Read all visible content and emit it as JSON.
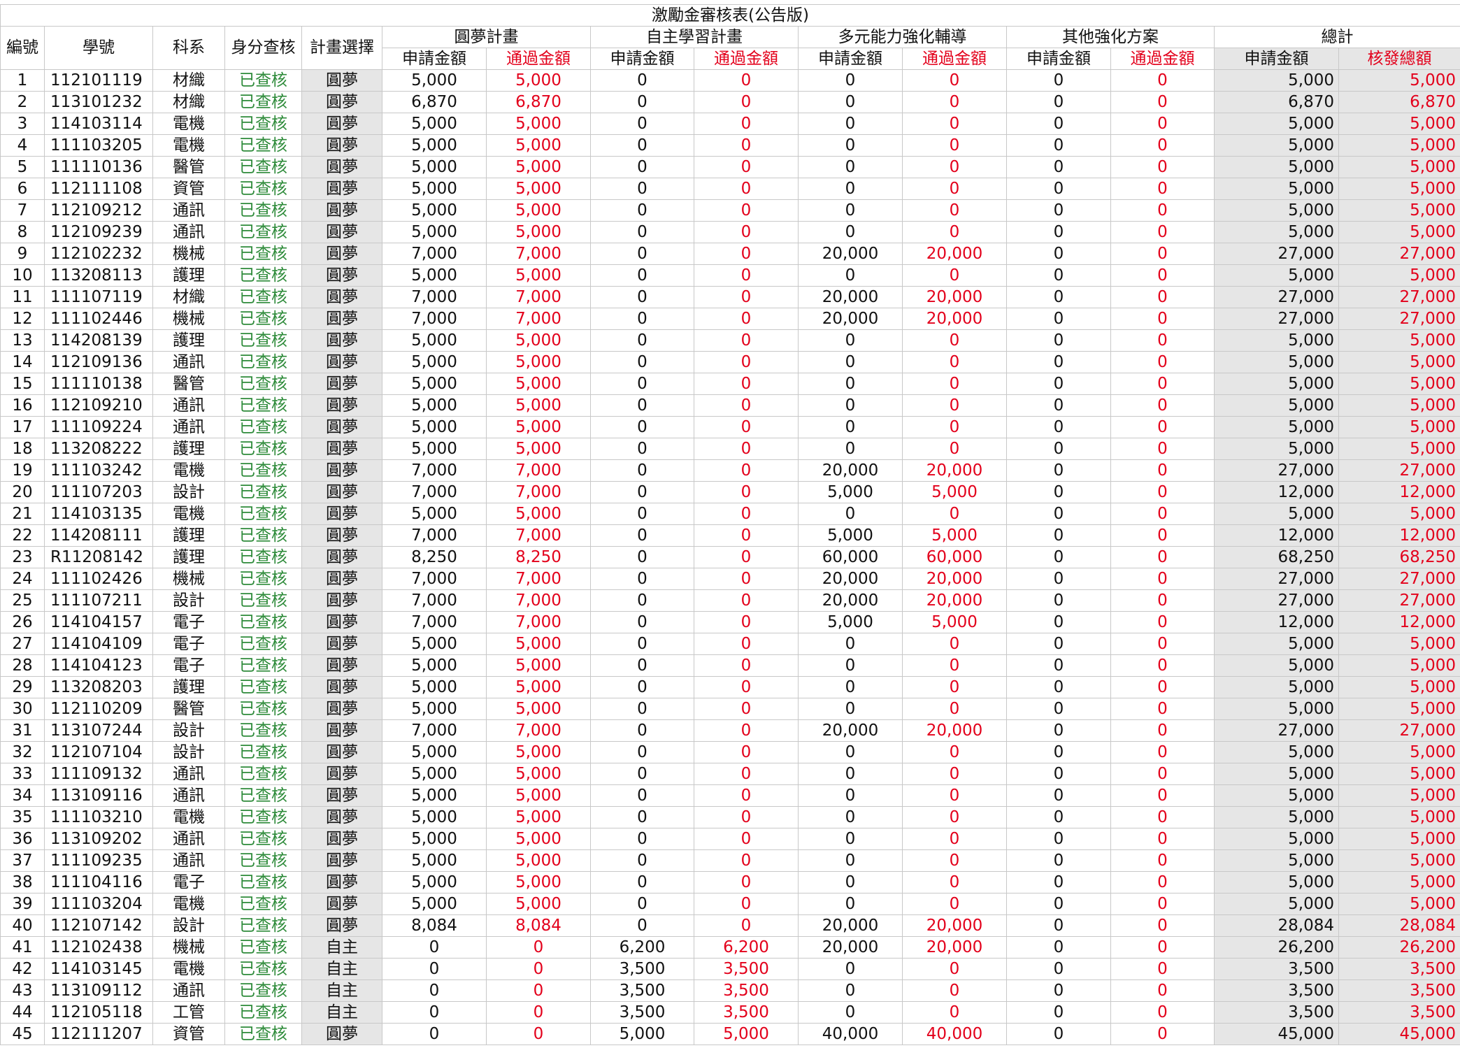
{
  "title": "激勵金審核表(公告版)",
  "headers": {
    "no": "編號",
    "student_id": "學號",
    "dept": "科系",
    "identity_check": "身分查核",
    "plan_choice": "計畫選擇",
    "groups": [
      "圓夢計畫",
      "自主學習計畫",
      "多元能力強化輔導",
      "其他強化方案",
      "總計"
    ],
    "apply": "申請金額",
    "approved": "通過金額",
    "total_issued": "核發總額"
  },
  "colors": {
    "approved_text": "#e3001b",
    "checked_text": "#2e8b3a",
    "gray_fill": "#e6e6e6"
  },
  "rows": [
    {
      "no": "1",
      "id": "112101119",
      "dept": "材織",
      "check": "已查核",
      "plan": "圓夢",
      "a1": "5,000",
      "p1": "5,000",
      "a2": "0",
      "p2": "0",
      "a3": "0",
      "p3": "0",
      "a4": "0",
      "p4": "0",
      "ta": "5,000",
      "tp": "5,000"
    },
    {
      "no": "2",
      "id": "113101232",
      "dept": "材織",
      "check": "已查核",
      "plan": "圓夢",
      "a1": "6,870",
      "p1": "6,870",
      "a2": "0",
      "p2": "0",
      "a3": "0",
      "p3": "0",
      "a4": "0",
      "p4": "0",
      "ta": "6,870",
      "tp": "6,870"
    },
    {
      "no": "3",
      "id": "114103114",
      "dept": "電機",
      "check": "已查核",
      "plan": "圓夢",
      "a1": "5,000",
      "p1": "5,000",
      "a2": "0",
      "p2": "0",
      "a3": "0",
      "p3": "0",
      "a4": "0",
      "p4": "0",
      "ta": "5,000",
      "tp": "5,000"
    },
    {
      "no": "4",
      "id": "111103205",
      "dept": "電機",
      "check": "已查核",
      "plan": "圓夢",
      "a1": "5,000",
      "p1": "5,000",
      "a2": "0",
      "p2": "0",
      "a3": "0",
      "p3": "0",
      "a4": "0",
      "p4": "0",
      "ta": "5,000",
      "tp": "5,000"
    },
    {
      "no": "5",
      "id": "111110136",
      "dept": "醫管",
      "check": "已查核",
      "plan": "圓夢",
      "a1": "5,000",
      "p1": "5,000",
      "a2": "0",
      "p2": "0",
      "a3": "0",
      "p3": "0",
      "a4": "0",
      "p4": "0",
      "ta": "5,000",
      "tp": "5,000"
    },
    {
      "no": "6",
      "id": "112111108",
      "dept": "資管",
      "check": "已查核",
      "plan": "圓夢",
      "a1": "5,000",
      "p1": "5,000",
      "a2": "0",
      "p2": "0",
      "a3": "0",
      "p3": "0",
      "a4": "0",
      "p4": "0",
      "ta": "5,000",
      "tp": "5,000"
    },
    {
      "no": "7",
      "id": "112109212",
      "dept": "通訊",
      "check": "已查核",
      "plan": "圓夢",
      "a1": "5,000",
      "p1": "5,000",
      "a2": "0",
      "p2": "0",
      "a3": "0",
      "p3": "0",
      "a4": "0",
      "p4": "0",
      "ta": "5,000",
      "tp": "5,000"
    },
    {
      "no": "8",
      "id": "112109239",
      "dept": "通訊",
      "check": "已查核",
      "plan": "圓夢",
      "a1": "5,000",
      "p1": "5,000",
      "a2": "0",
      "p2": "0",
      "a3": "0",
      "p3": "0",
      "a4": "0",
      "p4": "0",
      "ta": "5,000",
      "tp": "5,000"
    },
    {
      "no": "9",
      "id": "112102232",
      "dept": "機械",
      "check": "已查核",
      "plan": "圓夢",
      "a1": "7,000",
      "p1": "7,000",
      "a2": "0",
      "p2": "0",
      "a3": "20,000",
      "p3": "20,000",
      "a4": "0",
      "p4": "0",
      "ta": "27,000",
      "tp": "27,000"
    },
    {
      "no": "10",
      "id": "113208113",
      "dept": "護理",
      "check": "已查核",
      "plan": "圓夢",
      "a1": "5,000",
      "p1": "5,000",
      "a2": "0",
      "p2": "0",
      "a3": "0",
      "p3": "0",
      "a4": "0",
      "p4": "0",
      "ta": "5,000",
      "tp": "5,000"
    },
    {
      "no": "11",
      "id": "111107119",
      "dept": "材織",
      "check": "已查核",
      "plan": "圓夢",
      "a1": "7,000",
      "p1": "7,000",
      "a2": "0",
      "p2": "0",
      "a3": "20,000",
      "p3": "20,000",
      "a4": "0",
      "p4": "0",
      "ta": "27,000",
      "tp": "27,000"
    },
    {
      "no": "12",
      "id": "111102446",
      "dept": "機械",
      "check": "已查核",
      "plan": "圓夢",
      "a1": "7,000",
      "p1": "7,000",
      "a2": "0",
      "p2": "0",
      "a3": "20,000",
      "p3": "20,000",
      "a4": "0",
      "p4": "0",
      "ta": "27,000",
      "tp": "27,000"
    },
    {
      "no": "13",
      "id": "114208139",
      "dept": "護理",
      "check": "已查核",
      "plan": "圓夢",
      "a1": "5,000",
      "p1": "5,000",
      "a2": "0",
      "p2": "0",
      "a3": "0",
      "p3": "0",
      "a4": "0",
      "p4": "0",
      "ta": "5,000",
      "tp": "5,000"
    },
    {
      "no": "14",
      "id": "112109136",
      "dept": "通訊",
      "check": "已查核",
      "plan": "圓夢",
      "a1": "5,000",
      "p1": "5,000",
      "a2": "0",
      "p2": "0",
      "a3": "0",
      "p3": "0",
      "a4": "0",
      "p4": "0",
      "ta": "5,000",
      "tp": "5,000"
    },
    {
      "no": "15",
      "id": "111110138",
      "dept": "醫管",
      "check": "已查核",
      "plan": "圓夢",
      "a1": "5,000",
      "p1": "5,000",
      "a2": "0",
      "p2": "0",
      "a3": "0",
      "p3": "0",
      "a4": "0",
      "p4": "0",
      "ta": "5,000",
      "tp": "5,000"
    },
    {
      "no": "16",
      "id": "112109210",
      "dept": "通訊",
      "check": "已查核",
      "plan": "圓夢",
      "a1": "5,000",
      "p1": "5,000",
      "a2": "0",
      "p2": "0",
      "a3": "0",
      "p3": "0",
      "a4": "0",
      "p4": "0",
      "ta": "5,000",
      "tp": "5,000"
    },
    {
      "no": "17",
      "id": "111109224",
      "dept": "通訊",
      "check": "已查核",
      "plan": "圓夢",
      "a1": "5,000",
      "p1": "5,000",
      "a2": "0",
      "p2": "0",
      "a3": "0",
      "p3": "0",
      "a4": "0",
      "p4": "0",
      "ta": "5,000",
      "tp": "5,000"
    },
    {
      "no": "18",
      "id": "113208222",
      "dept": "護理",
      "check": "已查核",
      "plan": "圓夢",
      "a1": "5,000",
      "p1": "5,000",
      "a2": "0",
      "p2": "0",
      "a3": "0",
      "p3": "0",
      "a4": "0",
      "p4": "0",
      "ta": "5,000",
      "tp": "5,000"
    },
    {
      "no": "19",
      "id": "111103242",
      "dept": "電機",
      "check": "已查核",
      "plan": "圓夢",
      "a1": "7,000",
      "p1": "7,000",
      "a2": "0",
      "p2": "0",
      "a3": "20,000",
      "p3": "20,000",
      "a4": "0",
      "p4": "0",
      "ta": "27,000",
      "tp": "27,000"
    },
    {
      "no": "20",
      "id": "111107203",
      "dept": "設計",
      "check": "已查核",
      "plan": "圓夢",
      "a1": "7,000",
      "p1": "7,000",
      "a2": "0",
      "p2": "0",
      "a3": "5,000",
      "p3": "5,000",
      "a4": "0",
      "p4": "0",
      "ta": "12,000",
      "tp": "12,000"
    },
    {
      "no": "21",
      "id": "114103135",
      "dept": "電機",
      "check": "已查核",
      "plan": "圓夢",
      "a1": "5,000",
      "p1": "5,000",
      "a2": "0",
      "p2": "0",
      "a3": "0",
      "p3": "0",
      "a4": "0",
      "p4": "0",
      "ta": "5,000",
      "tp": "5,000"
    },
    {
      "no": "22",
      "id": "114208111",
      "dept": "護理",
      "check": "已查核",
      "plan": "圓夢",
      "a1": "7,000",
      "p1": "7,000",
      "a2": "0",
      "p2": "0",
      "a3": "5,000",
      "p3": "5,000",
      "a4": "0",
      "p4": "0",
      "ta": "12,000",
      "tp": "12,000"
    },
    {
      "no": "23",
      "id": "R11208142",
      "dept": "護理",
      "check": "已查核",
      "plan": "圓夢",
      "a1": "8,250",
      "p1": "8,250",
      "a2": "0",
      "p2": "0",
      "a3": "60,000",
      "p3": "60,000",
      "a4": "0",
      "p4": "0",
      "ta": "68,250",
      "tp": "68,250"
    },
    {
      "no": "24",
      "id": "111102426",
      "dept": "機械",
      "check": "已查核",
      "plan": "圓夢",
      "a1": "7,000",
      "p1": "7,000",
      "a2": "0",
      "p2": "0",
      "a3": "20,000",
      "p3": "20,000",
      "a4": "0",
      "p4": "0",
      "ta": "27,000",
      "tp": "27,000"
    },
    {
      "no": "25",
      "id": "111107211",
      "dept": "設計",
      "check": "已查核",
      "plan": "圓夢",
      "a1": "7,000",
      "p1": "7,000",
      "a2": "0",
      "p2": "0",
      "a3": "20,000",
      "p3": "20,000",
      "a4": "0",
      "p4": "0",
      "ta": "27,000",
      "tp": "27,000"
    },
    {
      "no": "26",
      "id": "114104157",
      "dept": "電子",
      "check": "已查核",
      "plan": "圓夢",
      "a1": "7,000",
      "p1": "7,000",
      "a2": "0",
      "p2": "0",
      "a3": "5,000",
      "p3": "5,000",
      "a4": "0",
      "p4": "0",
      "ta": "12,000",
      "tp": "12,000"
    },
    {
      "no": "27",
      "id": "114104109",
      "dept": "電子",
      "check": "已查核",
      "plan": "圓夢",
      "a1": "5,000",
      "p1": "5,000",
      "a2": "0",
      "p2": "0",
      "a3": "0",
      "p3": "0",
      "a4": "0",
      "p4": "0",
      "ta": "5,000",
      "tp": "5,000"
    },
    {
      "no": "28",
      "id": "114104123",
      "dept": "電子",
      "check": "已查核",
      "plan": "圓夢",
      "a1": "5,000",
      "p1": "5,000",
      "a2": "0",
      "p2": "0",
      "a3": "0",
      "p3": "0",
      "a4": "0",
      "p4": "0",
      "ta": "5,000",
      "tp": "5,000"
    },
    {
      "no": "29",
      "id": "113208203",
      "dept": "護理",
      "check": "已查核",
      "plan": "圓夢",
      "a1": "5,000",
      "p1": "5,000",
      "a2": "0",
      "p2": "0",
      "a3": "0",
      "p3": "0",
      "a4": "0",
      "p4": "0",
      "ta": "5,000",
      "tp": "5,000"
    },
    {
      "no": "30",
      "id": "112110209",
      "dept": "醫管",
      "check": "已查核",
      "plan": "圓夢",
      "a1": "5,000",
      "p1": "5,000",
      "a2": "0",
      "p2": "0",
      "a3": "0",
      "p3": "0",
      "a4": "0",
      "p4": "0",
      "ta": "5,000",
      "tp": "5,000"
    },
    {
      "no": "31",
      "id": "113107244",
      "dept": "設計",
      "check": "已查核",
      "plan": "圓夢",
      "a1": "7,000",
      "p1": "7,000",
      "a2": "0",
      "p2": "0",
      "a3": "20,000",
      "p3": "20,000",
      "a4": "0",
      "p4": "0",
      "ta": "27,000",
      "tp": "27,000"
    },
    {
      "no": "32",
      "id": "112107104",
      "dept": "設計",
      "check": "已查核",
      "plan": "圓夢",
      "a1": "5,000",
      "p1": "5,000",
      "a2": "0",
      "p2": "0",
      "a3": "0",
      "p3": "0",
      "a4": "0",
      "p4": "0",
      "ta": "5,000",
      "tp": "5,000"
    },
    {
      "no": "33",
      "id": "111109132",
      "dept": "通訊",
      "check": "已查核",
      "plan": "圓夢",
      "a1": "5,000",
      "p1": "5,000",
      "a2": "0",
      "p2": "0",
      "a3": "0",
      "p3": "0",
      "a4": "0",
      "p4": "0",
      "ta": "5,000",
      "tp": "5,000"
    },
    {
      "no": "34",
      "id": "113109116",
      "dept": "通訊",
      "check": "已查核",
      "plan": "圓夢",
      "a1": "5,000",
      "p1": "5,000",
      "a2": "0",
      "p2": "0",
      "a3": "0",
      "p3": "0",
      "a4": "0",
      "p4": "0",
      "ta": "5,000",
      "tp": "5,000"
    },
    {
      "no": "35",
      "id": "111103210",
      "dept": "電機",
      "check": "已查核",
      "plan": "圓夢",
      "a1": "5,000",
      "p1": "5,000",
      "a2": "0",
      "p2": "0",
      "a3": "0",
      "p3": "0",
      "a4": "0",
      "p4": "0",
      "ta": "5,000",
      "tp": "5,000"
    },
    {
      "no": "36",
      "id": "113109202",
      "dept": "通訊",
      "check": "已查核",
      "plan": "圓夢",
      "a1": "5,000",
      "p1": "5,000",
      "a2": "0",
      "p2": "0",
      "a3": "0",
      "p3": "0",
      "a4": "0",
      "p4": "0",
      "ta": "5,000",
      "tp": "5,000"
    },
    {
      "no": "37",
      "id": "111109235",
      "dept": "通訊",
      "check": "已查核",
      "plan": "圓夢",
      "a1": "5,000",
      "p1": "5,000",
      "a2": "0",
      "p2": "0",
      "a3": "0",
      "p3": "0",
      "a4": "0",
      "p4": "0",
      "ta": "5,000",
      "tp": "5,000"
    },
    {
      "no": "38",
      "id": "111104116",
      "dept": "電子",
      "check": "已查核",
      "plan": "圓夢",
      "a1": "5,000",
      "p1": "5,000",
      "a2": "0",
      "p2": "0",
      "a3": "0",
      "p3": "0",
      "a4": "0",
      "p4": "0",
      "ta": "5,000",
      "tp": "5,000"
    },
    {
      "no": "39",
      "id": "111103204",
      "dept": "電機",
      "check": "已查核",
      "plan": "圓夢",
      "a1": "5,000",
      "p1": "5,000",
      "a2": "0",
      "p2": "0",
      "a3": "0",
      "p3": "0",
      "a4": "0",
      "p4": "0",
      "ta": "5,000",
      "tp": "5,000"
    },
    {
      "no": "40",
      "id": "112107142",
      "dept": "設計",
      "check": "已查核",
      "plan": "圓夢",
      "a1": "8,084",
      "p1": "8,084",
      "a2": "0",
      "p2": "0",
      "a3": "20,000",
      "p3": "20,000",
      "a4": "0",
      "p4": "0",
      "ta": "28,084",
      "tp": "28,084"
    },
    {
      "no": "41",
      "id": "112102438",
      "dept": "機械",
      "check": "已查核",
      "plan": "自主",
      "a1": "0",
      "p1": "0",
      "a2": "6,200",
      "p2": "6,200",
      "a3": "20,000",
      "p3": "20,000",
      "a4": "0",
      "p4": "0",
      "ta": "26,200",
      "tp": "26,200"
    },
    {
      "no": "42",
      "id": "114103145",
      "dept": "電機",
      "check": "已查核",
      "plan": "自主",
      "a1": "0",
      "p1": "0",
      "a2": "3,500",
      "p2": "3,500",
      "a3": "0",
      "p3": "0",
      "a4": "0",
      "p4": "0",
      "ta": "3,500",
      "tp": "3,500"
    },
    {
      "no": "43",
      "id": "113109112",
      "dept": "通訊",
      "check": "已查核",
      "plan": "自主",
      "a1": "0",
      "p1": "0",
      "a2": "3,500",
      "p2": "3,500",
      "a3": "0",
      "p3": "0",
      "a4": "0",
      "p4": "0",
      "ta": "3,500",
      "tp": "3,500"
    },
    {
      "no": "44",
      "id": "112105118",
      "dept": "工管",
      "check": "已查核",
      "plan": "自主",
      "a1": "0",
      "p1": "0",
      "a2": "3,500",
      "p2": "3,500",
      "a3": "0",
      "p3": "0",
      "a4": "0",
      "p4": "0",
      "ta": "3,500",
      "tp": "3,500"
    },
    {
      "no": "45",
      "id": "112111207",
      "dept": "資管",
      "check": "已查核",
      "plan": "圓夢",
      "a1": "0",
      "p1": "0",
      "a2": "5,000",
      "p2": "5,000",
      "a3": "40,000",
      "p3": "40,000",
      "a4": "0",
      "p4": "0",
      "ta": "45,000",
      "tp": "45,000"
    }
  ]
}
